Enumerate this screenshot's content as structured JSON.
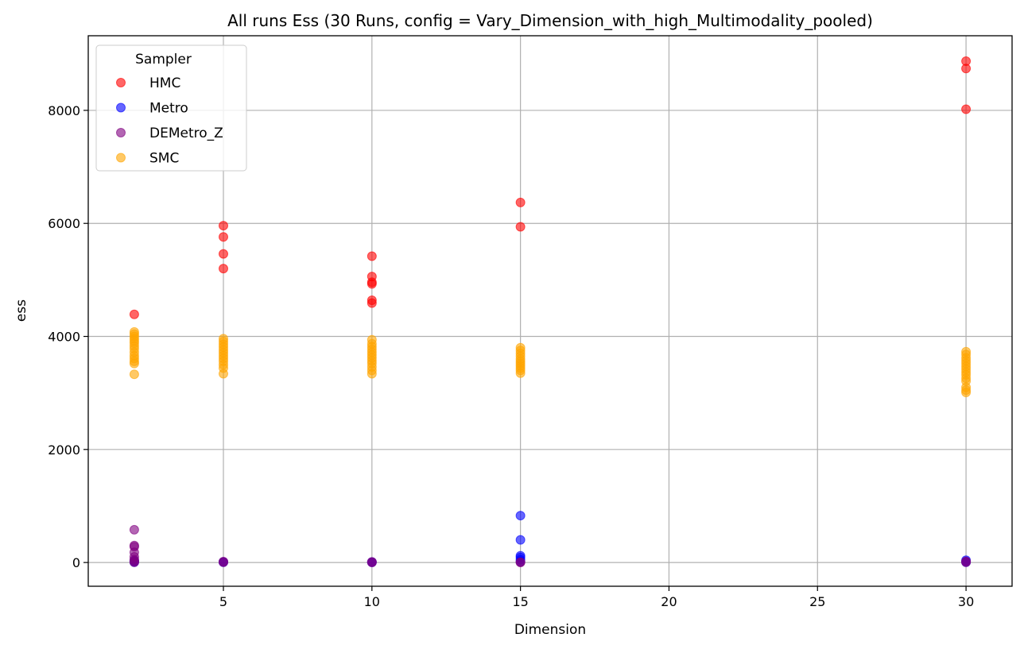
{
  "chart_data": {
    "type": "scatter",
    "title": "All runs Ess (30 Runs, config = Vary_Dimension_with_high_Multimodality_pooled)",
    "xlabel": "Dimension",
    "ylabel": "ess",
    "xlim": [
      0.45,
      31.55
    ],
    "ylim": [
      -420,
      9320
    ],
    "xticks": [
      5,
      10,
      15,
      20,
      25,
      30
    ],
    "yticks": [
      0,
      2000,
      4000,
      6000,
      8000
    ],
    "grid": true,
    "legend": {
      "title": "Sampler",
      "position": "top-left"
    },
    "series": [
      {
        "name": "HMC",
        "color": "#ff0000",
        "points": [
          [
            2,
            4390
          ],
          [
            5,
            5960
          ],
          [
            5,
            5760
          ],
          [
            5,
            5460
          ],
          [
            5,
            5200
          ],
          [
            10,
            5420
          ],
          [
            10,
            5060
          ],
          [
            10,
            4960
          ],
          [
            10,
            4930
          ],
          [
            10,
            4640
          ],
          [
            10,
            4590
          ],
          [
            15,
            6370
          ],
          [
            15,
            5940
          ],
          [
            30,
            8870
          ],
          [
            30,
            8740
          ],
          [
            30,
            8020
          ]
        ]
      },
      {
        "name": "Metro",
        "color": "#0000ff",
        "points": [
          [
            2,
            30
          ],
          [
            2,
            15
          ],
          [
            2,
            5
          ],
          [
            5,
            10
          ],
          [
            5,
            5
          ],
          [
            10,
            8
          ],
          [
            10,
            3
          ],
          [
            15,
            830
          ],
          [
            15,
            400
          ],
          [
            15,
            120
          ],
          [
            15,
            90
          ],
          [
            15,
            50
          ],
          [
            15,
            20
          ],
          [
            30,
            40
          ],
          [
            30,
            15
          ],
          [
            30,
            5
          ]
        ]
      },
      {
        "name": "DEMetro_Z",
        "color": "#800080",
        "points": [
          [
            2,
            580
          ],
          [
            2,
            300
          ],
          [
            2,
            280
          ],
          [
            2,
            180
          ],
          [
            2,
            100
          ],
          [
            2,
            50
          ],
          [
            2,
            20
          ],
          [
            2,
            5
          ],
          [
            5,
            15
          ],
          [
            5,
            5
          ],
          [
            10,
            10
          ],
          [
            10,
            2
          ],
          [
            15,
            5
          ],
          [
            15,
            1
          ],
          [
            30,
            20
          ],
          [
            30,
            5
          ]
        ]
      },
      {
        "name": "SMC",
        "color": "#ffa500",
        "points": [
          [
            2,
            4080
          ],
          [
            2,
            4040
          ],
          [
            2,
            4000
          ],
          [
            2,
            3960
          ],
          [
            2,
            3920
          ],
          [
            2,
            3880
          ],
          [
            2,
            3830
          ],
          [
            2,
            3780
          ],
          [
            2,
            3720
          ],
          [
            2,
            3660
          ],
          [
            2,
            3610
          ],
          [
            2,
            3560
          ],
          [
            2,
            3520
          ],
          [
            2,
            3330
          ],
          [
            5,
            3960
          ],
          [
            5,
            3910
          ],
          [
            5,
            3860
          ],
          [
            5,
            3810
          ],
          [
            5,
            3760
          ],
          [
            5,
            3710
          ],
          [
            5,
            3660
          ],
          [
            5,
            3610
          ],
          [
            5,
            3560
          ],
          [
            5,
            3500
          ],
          [
            5,
            3440
          ],
          [
            5,
            3340
          ],
          [
            10,
            3940
          ],
          [
            10,
            3870
          ],
          [
            10,
            3820
          ],
          [
            10,
            3770
          ],
          [
            10,
            3720
          ],
          [
            10,
            3670
          ],
          [
            10,
            3620
          ],
          [
            10,
            3570
          ],
          [
            10,
            3520
          ],
          [
            10,
            3460
          ],
          [
            10,
            3400
          ],
          [
            10,
            3340
          ],
          [
            15,
            3800
          ],
          [
            15,
            3750
          ],
          [
            15,
            3700
          ],
          [
            15,
            3650
          ],
          [
            15,
            3600
          ],
          [
            15,
            3560
          ],
          [
            15,
            3520
          ],
          [
            15,
            3480
          ],
          [
            15,
            3440
          ],
          [
            15,
            3400
          ],
          [
            15,
            3350
          ],
          [
            30,
            3730
          ],
          [
            30,
            3680
          ],
          [
            30,
            3620
          ],
          [
            30,
            3570
          ],
          [
            30,
            3520
          ],
          [
            30,
            3470
          ],
          [
            30,
            3420
          ],
          [
            30,
            3370
          ],
          [
            30,
            3320
          ],
          [
            30,
            3260
          ],
          [
            30,
            3210
          ],
          [
            30,
            3100
          ],
          [
            30,
            3050
          ],
          [
            30,
            3010
          ]
        ]
      }
    ]
  }
}
